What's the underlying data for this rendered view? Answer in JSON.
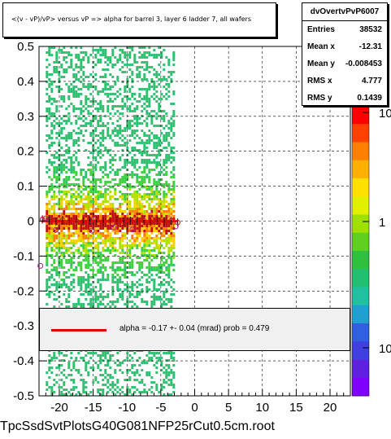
{
  "title": "<(v - vP)/vP> versus   vP => alpha for barrel 3, layer 6 ladder 7, all wafers",
  "stats": {
    "name": "dvOvertvPvP6007",
    "rows": [
      {
        "key": "Entries",
        "value": "38532"
      },
      {
        "key": "Mean x",
        "value": "-12.31"
      },
      {
        "key": "Mean y",
        "value": "-0.008453"
      },
      {
        "key": "RMS x",
        "value": "4.777"
      },
      {
        "key": "RMS y",
        "value": "0.1439"
      }
    ]
  },
  "fit_legend": "alpha =   -0.17 +-  0.04 (mrad) prob = 0.479",
  "filename": "TpcSsdSvtPlotsG40G081NFP25rCut0.5cm.root",
  "colors": {
    "fit_line": "#e00000",
    "band_high": "#c80000",
    "points": "#d01010"
  },
  "chart_data": {
    "type": "heatmap",
    "xlim": [
      -23,
      23
    ],
    "ylim": [
      -0.5,
      0.5
    ],
    "x_ticks": [
      -20,
      -15,
      -10,
      -5,
      0,
      5,
      10,
      15,
      20
    ],
    "y_ticks": [
      -0.5,
      -0.4,
      -0.3,
      -0.2,
      -0.1,
      0,
      0.1,
      0.2,
      0.3,
      0.4,
      0.5
    ],
    "x_tick_labels": [
      "-20",
      "-15",
      "-10",
      "-5",
      "0",
      "5",
      "10",
      "15",
      "20"
    ],
    "y_tick_labels": [
      "-0.5",
      "-0.4",
      "-0.3",
      "-0.2",
      "-0.1",
      "0",
      "0.1",
      "0.2",
      "0.3",
      "0.4",
      "0.5"
    ],
    "z_scale": "log",
    "z_tick_labels": [
      "10",
      "1",
      "10"
    ],
    "grid": true,
    "data_x_range": [
      -22,
      -3
    ],
    "profile_points": [
      {
        "x": -22.5,
        "y": 0.005
      },
      {
        "x": -21.5,
        "y": 0.002
      },
      {
        "x": -20.5,
        "y": -0.001
      },
      {
        "x": -19.5,
        "y": 0.003
      },
      {
        "x": -18.5,
        "y": 0.0
      },
      {
        "x": -17.5,
        "y": 0.001
      },
      {
        "x": -16.5,
        "y": -0.002
      },
      {
        "x": -15.5,
        "y": 0.002
      },
      {
        "x": -14.5,
        "y": 0.001
      },
      {
        "x": -13.5,
        "y": -0.001
      },
      {
        "x": -12.5,
        "y": 0.0
      },
      {
        "x": -11.5,
        "y": 0.002
      },
      {
        "x": -10.5,
        "y": -0.001
      },
      {
        "x": -9.5,
        "y": 0.001
      },
      {
        "x": -8.5,
        "y": 0.0
      },
      {
        "x": -7.5,
        "y": 0.001
      },
      {
        "x": -6.5,
        "y": -0.002
      },
      {
        "x": -5.5,
        "y": 0.002
      },
      {
        "x": -4.5,
        "y": 0.0
      },
      {
        "x": -3.5,
        "y": 0.001
      },
      {
        "x": -2.5,
        "y": -0.004
      }
    ],
    "outlier_points": [
      {
        "x": -22.8,
        "y": -0.128
      },
      {
        "x": -20.5,
        "y": -0.025
      },
      {
        "x": -15.2,
        "y": -0.027
      },
      {
        "x": -12.0,
        "y": -0.018
      },
      {
        "x": -9.2,
        "y": -0.024
      },
      {
        "x": -2.8,
        "y": -0.015
      },
      {
        "x": -22.0,
        "y": 0.008
      }
    ]
  }
}
